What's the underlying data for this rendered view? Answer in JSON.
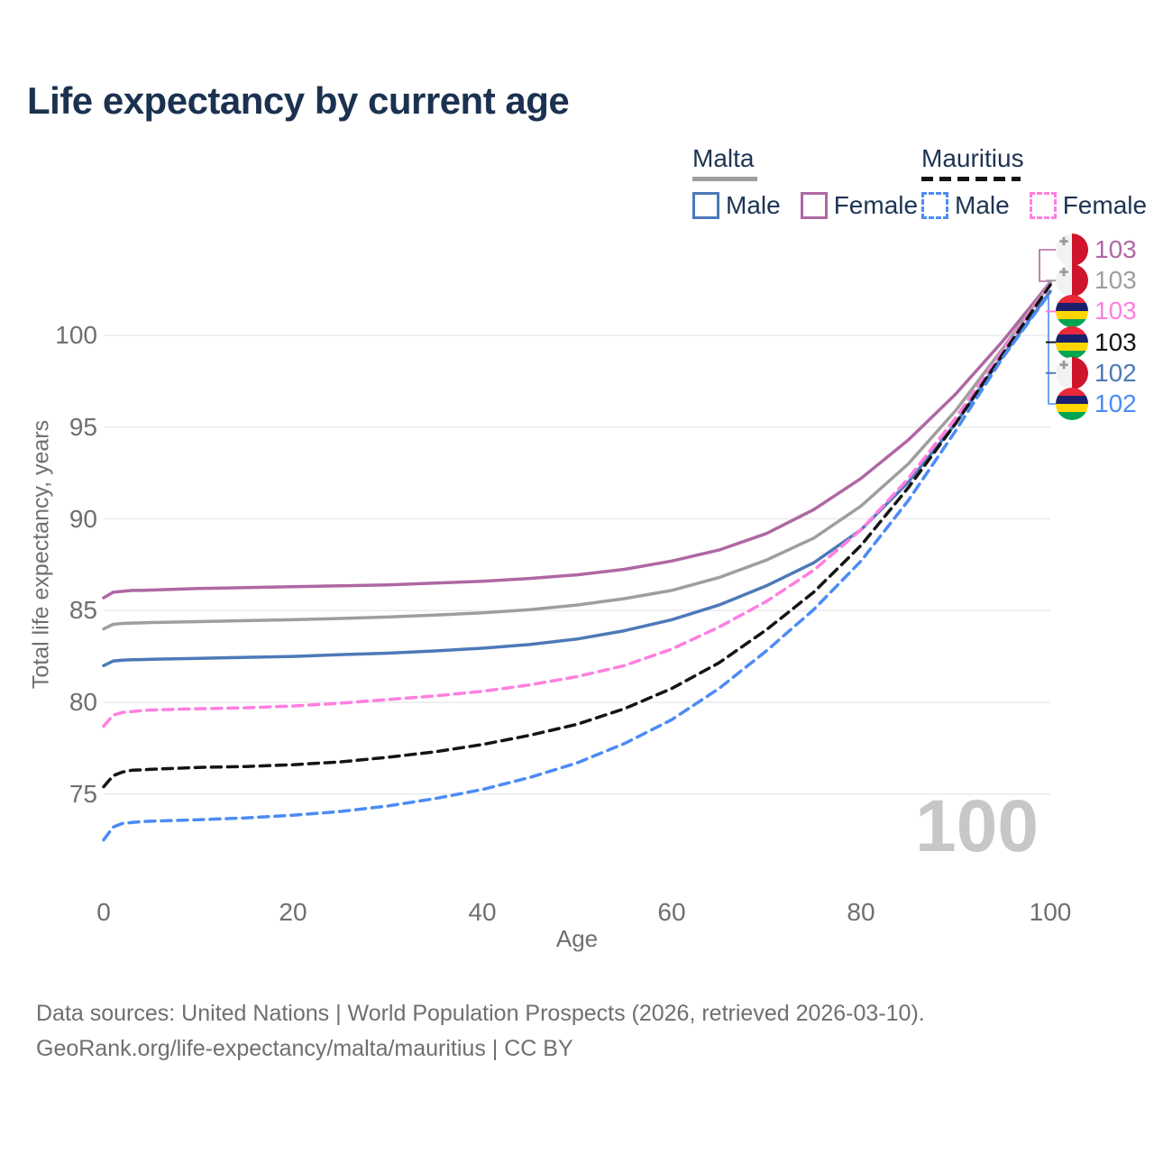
{
  "title": "Life expectancy by current age",
  "watermark_age": "100",
  "legend": {
    "groups": [
      {
        "name": "Malta",
        "underline_style": "solid",
        "items": [
          {
            "label": "Male",
            "color": "#4d79b8",
            "dashed": false
          },
          {
            "label": "Female",
            "color": "#af67a4",
            "dashed": false
          }
        ]
      },
      {
        "name": "Mauritius",
        "underline_style": "dashed",
        "items": [
          {
            "label": "Male",
            "color": "#4c8bf5",
            "dashed": true
          },
          {
            "label": "Female",
            "color": "#ff7ee0",
            "dashed": true
          }
        ]
      }
    ]
  },
  "axes": {
    "y_title": "Total life expectancy, years",
    "x_title": "Age",
    "y_ticks": [
      75,
      80,
      85,
      90,
      95,
      100
    ],
    "x_ticks": [
      0,
      20,
      40,
      60,
      80,
      100
    ]
  },
  "end_labels": [
    {
      "flag": "malta",
      "value": "103",
      "color": "#af67a4"
    },
    {
      "flag": "malta",
      "value": "103",
      "color": "#9e9e9e"
    },
    {
      "flag": "mauritius",
      "value": "103",
      "color": "#ff7ee0"
    },
    {
      "flag": "mauritius",
      "value": "103",
      "color": "#141414"
    },
    {
      "flag": "malta",
      "value": "102",
      "color": "#4d79b8"
    },
    {
      "flag": "mauritius",
      "value": "102",
      "color": "#4c8bf5"
    }
  ],
  "footer": {
    "line1": "Data sources: United Nations | World Population Prospects (2026, retrieved 2026-03-10).",
    "line2": "GeoRank.org/life-expectancy/malta/mauritius | CC BY"
  },
  "chart_data": {
    "type": "line",
    "title": "Life expectancy by current age",
    "xlabel": "Age",
    "ylabel": "Total life expectancy, years",
    "xlim": [
      0,
      100
    ],
    "ylim": [
      72,
      104
    ],
    "grid": "horizontal",
    "legend_position": "top-right",
    "x": [
      0,
      1,
      2,
      3,
      4,
      5,
      10,
      15,
      20,
      25,
      30,
      35,
      40,
      45,
      50,
      55,
      60,
      65,
      70,
      75,
      80,
      85,
      90,
      95,
      100
    ],
    "series": [
      {
        "name": "Malta Female",
        "country": "Malta",
        "sex": "Female",
        "color": "#af67a4",
        "dash": false,
        "values": [
          85.7,
          86.0,
          86.05,
          86.1,
          86.1,
          86.12,
          86.2,
          86.25,
          86.3,
          86.35,
          86.4,
          86.5,
          86.6,
          86.75,
          86.95,
          87.25,
          87.7,
          88.3,
          89.2,
          90.5,
          92.2,
          94.3,
          96.8,
          99.7,
          102.9
        ]
      },
      {
        "name": "Malta All",
        "country": "Malta",
        "sex": "All",
        "color": "#9e9e9e",
        "dash": false,
        "values": [
          84.0,
          84.25,
          84.3,
          84.32,
          84.33,
          84.35,
          84.4,
          84.45,
          84.5,
          84.57,
          84.65,
          84.75,
          84.88,
          85.05,
          85.3,
          85.65,
          86.1,
          86.8,
          87.75,
          88.95,
          90.7,
          93.0,
          95.9,
          99.3,
          102.85
        ]
      },
      {
        "name": "Malta Male",
        "country": "Malta",
        "sex": "Male",
        "color": "#4d79b8",
        "dash": false,
        "values": [
          82.0,
          82.25,
          82.3,
          82.32,
          82.33,
          82.35,
          82.4,
          82.45,
          82.5,
          82.6,
          82.68,
          82.8,
          82.95,
          83.15,
          83.45,
          83.9,
          84.5,
          85.3,
          86.35,
          87.6,
          89.4,
          92.0,
          95.2,
          98.9,
          102.4
        ]
      },
      {
        "name": "Mauritius Female",
        "country": "Mauritius",
        "sex": "Female",
        "color": "#ff7ee0",
        "dash": true,
        "values": [
          78.7,
          79.3,
          79.45,
          79.5,
          79.55,
          79.58,
          79.65,
          79.7,
          79.8,
          79.95,
          80.15,
          80.35,
          80.6,
          80.95,
          81.4,
          82.0,
          82.9,
          84.1,
          85.5,
          87.2,
          89.4,
          92.2,
          95.5,
          99.2,
          102.8
        ]
      },
      {
        "name": "Mauritius All",
        "country": "Mauritius",
        "sex": "All",
        "color": "#141414",
        "dash": true,
        "values": [
          75.4,
          76.0,
          76.2,
          76.3,
          76.32,
          76.35,
          76.45,
          76.5,
          76.6,
          76.75,
          77.0,
          77.3,
          77.7,
          78.2,
          78.8,
          79.65,
          80.75,
          82.15,
          83.95,
          86.0,
          88.55,
          91.7,
          95.2,
          99.0,
          102.75
        ]
      },
      {
        "name": "Mauritius Male",
        "country": "Mauritius",
        "sex": "Male",
        "color": "#4c8bf5",
        "dash": true,
        "values": [
          72.5,
          73.2,
          73.4,
          73.45,
          73.5,
          73.52,
          73.6,
          73.7,
          73.85,
          74.05,
          74.35,
          74.75,
          75.25,
          75.9,
          76.7,
          77.75,
          79.05,
          80.75,
          82.8,
          85.05,
          87.7,
          91.0,
          94.8,
          98.8,
          102.35
        ]
      }
    ]
  }
}
